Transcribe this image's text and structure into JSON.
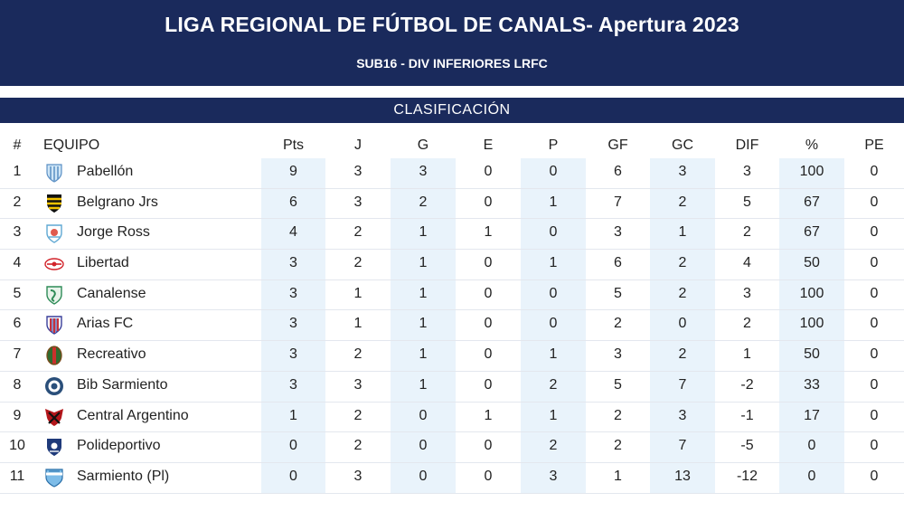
{
  "header": {
    "title": "LIGA REGIONAL DE FÚTBOL DE CANALS- Apertura 2023",
    "subtitle": "SUB16 - DIV INFERIORES LRFC"
  },
  "section": {
    "title": "CLASIFICACIÓN"
  },
  "columns": [
    "#",
    "EQUIPO",
    "Pts",
    "J",
    "G",
    "E",
    "P",
    "GF",
    "GC",
    "DIF",
    "%",
    "PE"
  ],
  "rows": [
    {
      "pos": "1",
      "team": "Pabellón",
      "crest": "pabellon-crest",
      "pts": "9",
      "j": "3",
      "g": "3",
      "e": "0",
      "p": "0",
      "gf": "6",
      "gc": "3",
      "dif": "3",
      "pct": "100",
      "pe": "0"
    },
    {
      "pos": "2",
      "team": "Belgrano Jrs",
      "crest": "belgrano-crest",
      "pts": "6",
      "j": "3",
      "g": "2",
      "e": "0",
      "p": "1",
      "gf": "7",
      "gc": "2",
      "dif": "5",
      "pct": "67",
      "pe": "0"
    },
    {
      "pos": "3",
      "team": "Jorge Ross",
      "crest": "jorge-ross-crest",
      "pts": "4",
      "j": "2",
      "g": "1",
      "e": "1",
      "p": "0",
      "gf": "3",
      "gc": "1",
      "dif": "2",
      "pct": "67",
      "pe": "0"
    },
    {
      "pos": "4",
      "team": "Libertad",
      "crest": "libertad-crest",
      "pts": "3",
      "j": "2",
      "g": "1",
      "e": "0",
      "p": "1",
      "gf": "6",
      "gc": "2",
      "dif": "4",
      "pct": "50",
      "pe": "0"
    },
    {
      "pos": "5",
      "team": "Canalense",
      "crest": "canalense-crest",
      "pts": "3",
      "j": "1",
      "g": "1",
      "e": "0",
      "p": "0",
      "gf": "5",
      "gc": "2",
      "dif": "3",
      "pct": "100",
      "pe": "0"
    },
    {
      "pos": "6",
      "team": "Arias FC",
      "crest": "arias-crest",
      "pts": "3",
      "j": "1",
      "g": "1",
      "e": "0",
      "p": "0",
      "gf": "2",
      "gc": "0",
      "dif": "2",
      "pct": "100",
      "pe": "0"
    },
    {
      "pos": "7",
      "team": "Recreativo",
      "crest": "recreativo-crest",
      "pts": "3",
      "j": "2",
      "g": "1",
      "e": "0",
      "p": "1",
      "gf": "3",
      "gc": "2",
      "dif": "1",
      "pct": "50",
      "pe": "0"
    },
    {
      "pos": "8",
      "team": "Bib Sarmiento",
      "crest": "bib-sarmiento-crest",
      "pts": "3",
      "j": "3",
      "g": "1",
      "e": "0",
      "p": "2",
      "gf": "5",
      "gc": "7",
      "dif": "-2",
      "pct": "33",
      "pe": "0"
    },
    {
      "pos": "9",
      "team": "Central Argentino",
      "crest": "central-argentino-crest",
      "pts": "1",
      "j": "2",
      "g": "0",
      "e": "1",
      "p": "1",
      "gf": "2",
      "gc": "3",
      "dif": "-1",
      "pct": "17",
      "pe": "0"
    },
    {
      "pos": "10",
      "team": "Polideportivo",
      "crest": "polideportivo-crest",
      "pts": "0",
      "j": "2",
      "g": "0",
      "e": "0",
      "p": "2",
      "gf": "2",
      "gc": "7",
      "dif": "-5",
      "pct": "0",
      "pe": "0"
    },
    {
      "pos": "11",
      "team": "Sarmiento (Pl)",
      "crest": "sarmiento-pl-crest",
      "pts": "0",
      "j": "3",
      "g": "0",
      "e": "0",
      "p": "3",
      "gf": "1",
      "gc": "13",
      "dif": "-12",
      "pct": "0",
      "pe": "0"
    }
  ],
  "colors": {
    "header_bg": "#1a2a5c",
    "highlight_col": "#e9f3fb",
    "text": "#222222"
  }
}
